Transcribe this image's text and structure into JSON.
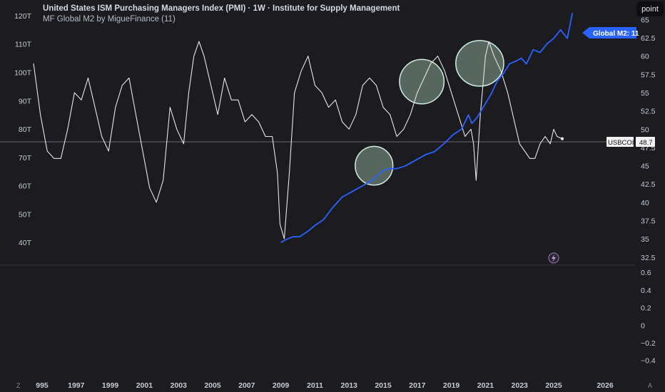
{
  "header": {
    "title": "United States ISM Purchasing Managers Index (PMI) · 1W · Institute for Supply Management",
    "subtitle": "MF Global M2 by MigueFinance (11)",
    "point_button": "point"
  },
  "labels": {
    "m2_badge": "Global M2: 11",
    "symbol_badge": "USBCOI",
    "symbol_value": "48.7"
  },
  "corners": {
    "left": "Z",
    "right": "A"
  },
  "colors": {
    "background": "#1c1c20",
    "pmi_line": "#e6e6e6",
    "m2_line": "#2962ff",
    "circle_fill": "#6b7f73",
    "circle_stroke": "#cfeee0"
  },
  "chart_data": [
    {
      "type": "line",
      "title": "United States ISM Purchasing Managers Index (PMI)",
      "x_ticks": [
        "995",
        "1997",
        "1999",
        "2001",
        "2003",
        "2005",
        "2007",
        "2009",
        "2011",
        "2013",
        "2015",
        "2017",
        "2019",
        "2021",
        "2023",
        "2025",
        "2026"
      ],
      "left_axis": {
        "ticks": [
          "120T",
          "110T",
          "100T",
          "90T",
          "80T",
          "70T",
          "60T",
          "50T",
          "40T"
        ],
        "ylim": [
          32.5,
          122.5
        ]
      },
      "right_axis": {
        "ticks": [
          "65",
          "62.5",
          "60",
          "57.5",
          "55",
          "52.5",
          "50",
          "47.5",
          "45",
          "42.5",
          "40",
          "37.5",
          "35",
          "32.5"
        ],
        "ylim": [
          31.6,
          66.5
        ]
      },
      "series": [
        {
          "name": "USBCOI",
          "axis": "right",
          "x": [
            1994.5,
            1994.9,
            1995.3,
            1995.7,
            1996.1,
            1996.5,
            1996.9,
            1997.3,
            1997.7,
            1998.1,
            1998.5,
            1998.9,
            1999.3,
            1999.7,
            2000.1,
            2000.5,
            2000.9,
            2001.3,
            2001.7,
            2002.1,
            2002.5,
            2002.9,
            2003.3,
            2003.6,
            2003.9,
            2004.2,
            2004.5,
            2004.9,
            2005.3,
            2005.7,
            2006.1,
            2006.5,
            2006.9,
            2007.3,
            2007.7,
            2008.1,
            2008.5,
            2008.8,
            2008.95,
            2009.2,
            2009.5,
            2009.8,
            2010.2,
            2010.6,
            2011.0,
            2011.4,
            2011.8,
            2012.2,
            2012.6,
            2013.0,
            2013.4,
            2013.8,
            2014.2,
            2014.6,
            2015.0,
            2015.4,
            2015.8,
            2016.2,
            2016.6,
            2017.0,
            2017.4,
            2017.8,
            2018.2,
            2018.6,
            2019.0,
            2019.4,
            2019.8,
            2020.15,
            2020.3,
            2020.45,
            2020.7,
            2021.0,
            2021.2,
            2021.5,
            2021.9,
            2022.3,
            2022.7,
            2023.0,
            2023.3,
            2023.6,
            2023.9,
            2024.2,
            2024.5,
            2024.8,
            2025.0,
            2025.2,
            2025.5
          ],
          "values": [
            59,
            52,
            47,
            46,
            46,
            50,
            55,
            54,
            57,
            53,
            49,
            47,
            53,
            56,
            57,
            52,
            47,
            42,
            40,
            43,
            53,
            50,
            48,
            55,
            60,
            62,
            60,
            56,
            52,
            57,
            54,
            54,
            51,
            52,
            51,
            49,
            49,
            44,
            37,
            35,
            44,
            55,
            58,
            60,
            56,
            55,
            53,
            54,
            51,
            50,
            52,
            56,
            57,
            56,
            53,
            52,
            49,
            50,
            52,
            55,
            57,
            59,
            60,
            58,
            55,
            52,
            49,
            50,
            48,
            43,
            52,
            60,
            62,
            60,
            58,
            55,
            51,
            48,
            47,
            46,
            46,
            48,
            49,
            48,
            50,
            49,
            48.7
          ]
        },
        {
          "name": "Global M2",
          "axis": "left",
          "x": [
            2009.0,
            2009.3,
            2009.7,
            2010.1,
            2010.6,
            2011.0,
            2011.5,
            2012.0,
            2012.6,
            2013.2,
            2013.8,
            2014.4,
            2014.9,
            2015.3,
            2015.8,
            2016.3,
            2016.9,
            2017.5,
            2018.0,
            2018.6,
            2019.1,
            2019.6,
            2020.0,
            2020.2,
            2020.5,
            2020.9,
            2021.3,
            2021.7,
            2022.1,
            2022.4,
            2022.8,
            2023.1,
            2023.4,
            2023.8,
            2024.2,
            2024.6,
            2025.0,
            2025.4,
            2025.8,
            2026.1
          ],
          "values": [
            40,
            41,
            42,
            42,
            44,
            46,
            48,
            52,
            56,
            58,
            60,
            62,
            65,
            66,
            66,
            67,
            69,
            71,
            72,
            75,
            78,
            80,
            85,
            82,
            84,
            88,
            92,
            97,
            100,
            103,
            104,
            105,
            103,
            108,
            107,
            110,
            112,
            115,
            112,
            121
          ]
        }
      ],
      "annotations": [
        "circle",
        "circle",
        "circle"
      ]
    },
    {
      "type": "line",
      "title": "",
      "y_ticks": [
        "0.6",
        "0.4",
        "0.2",
        "0",
        "−0.2",
        "−0.4"
      ],
      "ylim": [
        -0.5,
        0.65
      ],
      "series": []
    }
  ]
}
